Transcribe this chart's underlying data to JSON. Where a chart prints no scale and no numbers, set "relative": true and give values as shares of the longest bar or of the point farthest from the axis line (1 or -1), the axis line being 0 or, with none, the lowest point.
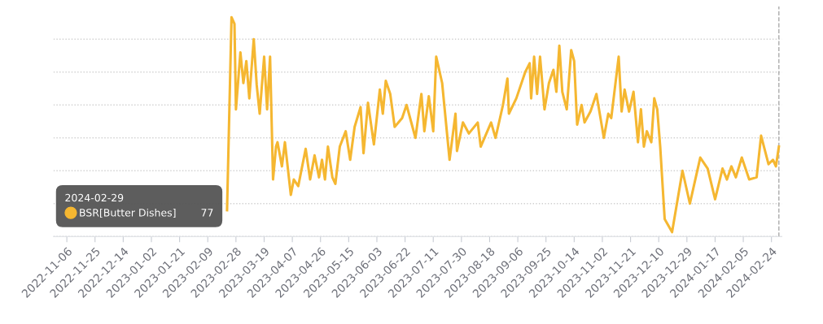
{
  "chart_data": {
    "type": "line",
    "relative": true,
    "x": [
      "2023-02-22",
      "2023-02-25",
      "2023-02-27",
      "2023-02-28",
      "2023-03-03",
      "2023-03-05",
      "2023-03-07",
      "2023-03-09",
      "2023-03-12",
      "2023-03-14",
      "2023-03-16",
      "2023-03-19",
      "2023-03-21",
      "2023-03-23",
      "2023-03-25",
      "2023-03-27",
      "2023-03-28",
      "2023-03-31",
      "2023-04-02",
      "2023-04-06",
      "2023-04-08",
      "2023-04-11",
      "2023-04-16",
      "2023-04-19",
      "2023-04-22",
      "2023-04-25",
      "2023-04-27",
      "2023-04-29",
      "2023-05-01",
      "2023-05-04",
      "2023-05-06",
      "2023-05-09",
      "2023-05-13",
      "2023-05-16",
      "2023-05-19",
      "2023-05-23",
      "2023-05-25",
      "2023-05-28",
      "2023-06-01",
      "2023-06-05",
      "2023-06-07",
      "2023-06-09",
      "2023-06-12",
      "2023-06-15",
      "2023-06-20",
      "2023-06-23",
      "2023-06-29",
      "2023-07-03",
      "2023-07-05",
      "2023-07-08",
      "2023-07-11",
      "2023-07-13",
      "2023-07-17",
      "2023-07-22",
      "2023-07-26",
      "2023-07-27",
      "2023-07-31",
      "2023-08-04",
      "2023-08-10",
      "2023-08-12",
      "2023-08-19",
      "2023-08-22",
      "2023-08-27",
      "2023-08-30",
      "2023-08-31",
      "2023-09-05",
      "2023-09-11",
      "2023-09-14",
      "2023-09-15",
      "2023-09-17",
      "2023-09-19",
      "2023-09-21",
      "2023-09-24",
      "2023-09-27",
      "2023-09-30",
      "2023-10-02",
      "2023-10-04",
      "2023-10-06",
      "2023-10-09",
      "2023-10-12",
      "2023-10-14",
      "2023-10-16",
      "2023-10-19",
      "2023-10-21",
      "2023-10-25",
      "2023-10-29",
      "2023-11-03",
      "2023-11-06",
      "2023-11-08",
      "2023-11-13",
      "2023-11-15",
      "2023-11-17",
      "2023-11-20",
      "2023-11-23",
      "2023-11-26",
      "2023-11-28",
      "2023-11-30",
      "2023-12-02",
      "2023-12-05",
      "2023-12-07",
      "2023-12-09",
      "2023-12-11",
      "2023-12-14",
      "2023-12-19",
      "2023-12-23",
      "2023-12-26",
      "2023-12-31",
      "2024-01-03",
      "2024-01-07",
      "2024-01-12",
      "2024-01-17",
      "2024-01-22",
      "2024-01-25",
      "2024-01-28",
      "2024-01-31",
      "2024-02-04",
      "2024-02-09",
      "2024-02-14",
      "2024-02-17",
      "2024-02-22",
      "2024-02-25",
      "2024-02-27",
      "2024-02-29"
    ],
    "series": [
      {
        "name": "BSR[Butter Dishes]",
        "color": "#f5b731",
        "values": [
          0.12,
          1.0,
          0.97,
          0.58,
          0.84,
          0.7,
          0.8,
          0.63,
          0.9,
          0.69,
          0.56,
          0.82,
          0.58,
          0.82,
          0.26,
          0.41,
          0.43,
          0.32,
          0.43,
          0.19,
          0.26,
          0.23,
          0.4,
          0.26,
          0.37,
          0.27,
          0.35,
          0.26,
          0.41,
          0.27,
          0.24,
          0.41,
          0.48,
          0.35,
          0.5,
          0.59,
          0.38,
          0.61,
          0.42,
          0.67,
          0.56,
          0.71,
          0.65,
          0.5,
          0.54,
          0.6,
          0.45,
          0.65,
          0.48,
          0.64,
          0.48,
          0.82,
          0.7,
          0.35,
          0.56,
          0.39,
          0.52,
          0.47,
          0.52,
          0.41,
          0.52,
          0.45,
          0.6,
          0.72,
          0.56,
          0.63,
          0.75,
          0.79,
          0.63,
          0.82,
          0.65,
          0.82,
          0.58,
          0.7,
          0.76,
          0.66,
          0.87,
          0.66,
          0.58,
          0.85,
          0.8,
          0.51,
          0.6,
          0.52,
          0.57,
          0.65,
          0.45,
          0.56,
          0.54,
          0.82,
          0.57,
          0.67,
          0.57,
          0.66,
          0.43,
          0.58,
          0.41,
          0.48,
          0.43,
          0.63,
          0.58,
          0.41,
          0.08,
          0.02,
          0.18,
          0.3,
          0.15,
          0.24,
          0.36,
          0.31,
          0.17,
          0.31,
          0.26,
          0.32,
          0.27,
          0.36,
          0.26,
          0.27,
          0.46,
          0.33,
          0.35,
          0.32,
          0.41
        ]
      }
    ],
    "xlim": [
      "2022-10-28",
      "2024-03-02"
    ],
    "xticks": [
      {
        "value": "2022-11-06",
        "label": "2022-11-06"
      },
      {
        "value": "2022-11-25",
        "label": "2022-11-25"
      },
      {
        "value": "2022-12-14",
        "label": "2022-12-14"
      },
      {
        "value": "2023-01-02",
        "label": "2023-01-02"
      },
      {
        "value": "2023-01-21",
        "label": "2023-01-21"
      },
      {
        "value": "2023-02-09",
        "label": "2023-02-09"
      },
      {
        "value": "2023-02-28",
        "label": "2023-02-28"
      },
      {
        "value": "2023-03-19",
        "label": "2023-03-19"
      },
      {
        "value": "2023-04-07",
        "label": "2023-04-07"
      },
      {
        "value": "2023-04-26",
        "label": "2023-04-26"
      },
      {
        "value": "2023-05-15",
        "label": "2023-05-15"
      },
      {
        "value": "2023-06-03",
        "label": "2023-06-03"
      },
      {
        "value": "2023-06-22",
        "label": "2023-06-22"
      },
      {
        "value": "2023-07-11",
        "label": "2023-07-11"
      },
      {
        "value": "2023-07-30",
        "label": "2023-07-30"
      },
      {
        "value": "2023-08-18",
        "label": "2023-08-18"
      },
      {
        "value": "2023-09-06",
        "label": "2023-09-06"
      },
      {
        "value": "2023-09-25",
        "label": "2023-09-25"
      },
      {
        "value": "2023-10-14",
        "label": "2023-10-14"
      },
      {
        "value": "2023-11-02",
        "label": "2023-11-02"
      },
      {
        "value": "2023-11-21",
        "label": "2023-11-21"
      },
      {
        "value": "2023-12-10",
        "label": "2023-12-10"
      },
      {
        "value": "2023-12-29",
        "label": "2023-12-29"
      },
      {
        "value": "2024-01-17",
        "label": "2024-01-17"
      },
      {
        "value": "2024-02-05",
        "label": "2024-02-05"
      },
      {
        "value": "2024-02-24",
        "label": "2024-02-24"
      }
    ],
    "tick_labels": "x",
    "grid": "y",
    "legend": "bottom left",
    "legend_title": "2024-02-29",
    "annotations": [
      "77"
    ],
    "ref_lines": [
      {
        "axis": "x",
        "value": "2024-02-29",
        "color": "#aaaaaa",
        "line_style": "dashed"
      }
    ]
  }
}
